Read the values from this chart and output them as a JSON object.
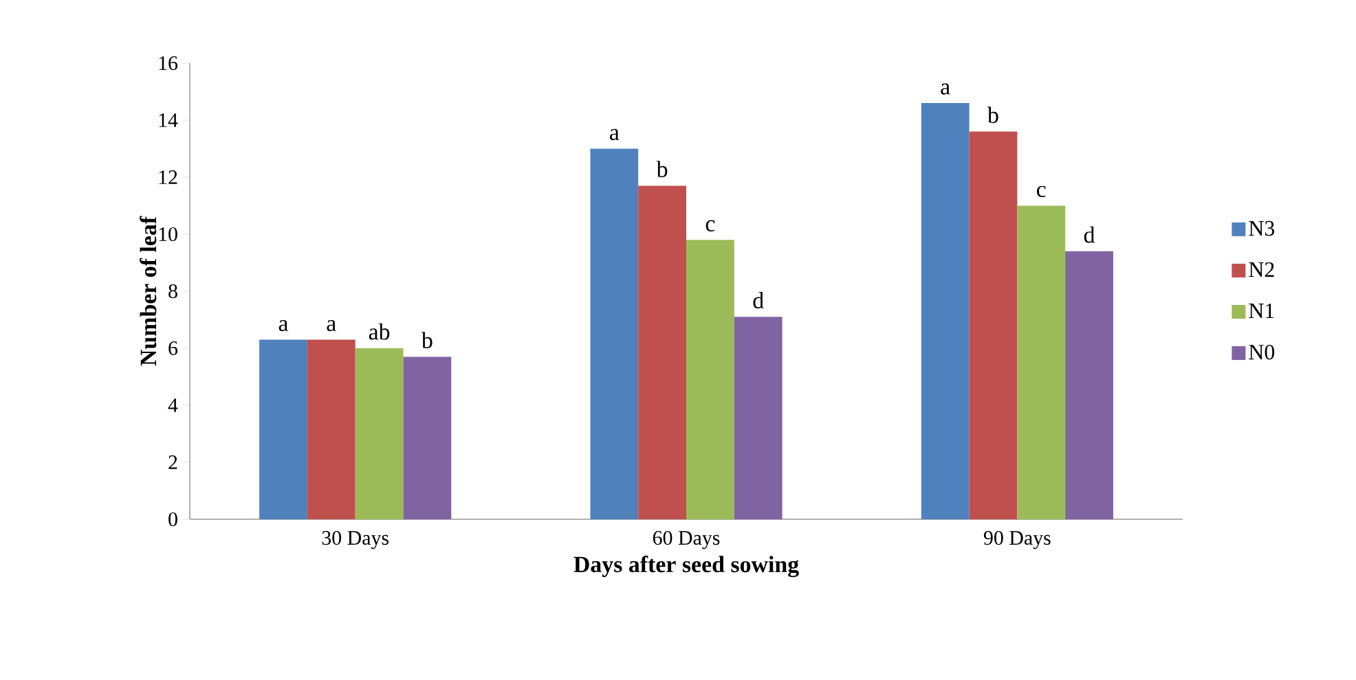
{
  "chart_data": {
    "type": "bar",
    "xlabel": "Days after seed sowing",
    "ylabel": "Number of leaf",
    "categories": [
      "30 Days",
      "60 Days",
      "90 Days"
    ],
    "series": [
      {
        "name": "N3",
        "color": "#4f81bd",
        "values": [
          6.3,
          13.0,
          14.6
        ],
        "value_labels": [
          "a",
          "a",
          "a"
        ]
      },
      {
        "name": "N2",
        "color": "#c0504d",
        "values": [
          6.3,
          11.7,
          13.6
        ],
        "value_labels": [
          "a",
          "b",
          "b"
        ]
      },
      {
        "name": "N1",
        "color": "#9bbb59",
        "values": [
          6.0,
          9.8,
          11.0
        ],
        "value_labels": [
          "ab",
          "c",
          "c"
        ]
      },
      {
        "name": "N0",
        "color": "#8064a2",
        "values": [
          5.7,
          7.1,
          9.4
        ],
        "value_labels": [
          "b",
          "d",
          "d"
        ]
      }
    ],
    "ylim": [
      0,
      16
    ],
    "yticks": [
      0,
      2,
      4,
      6,
      8,
      10,
      12,
      14,
      16
    ],
    "legend": "right",
    "grid": false
  }
}
